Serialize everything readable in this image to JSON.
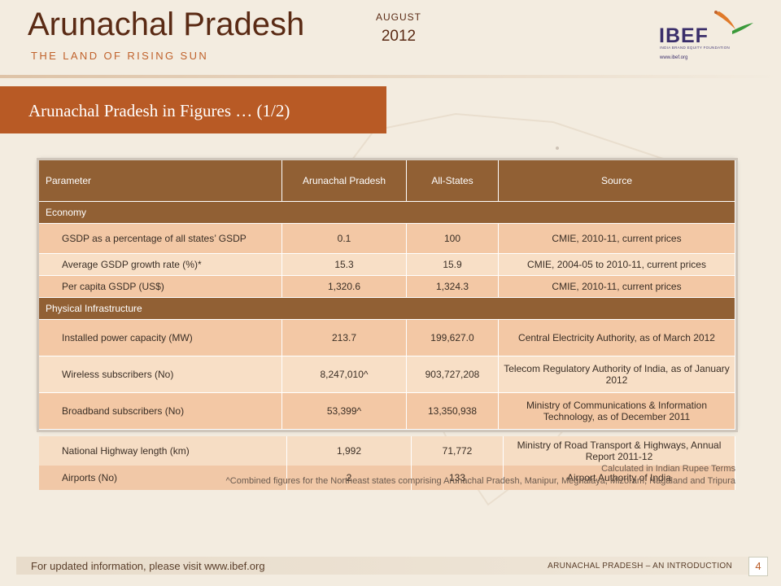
{
  "header": {
    "title": "Arunachal Pradesh",
    "tagline": "THE LAND OF RISING SUN",
    "month": "AUGUST",
    "year": "2012"
  },
  "logo": {
    "name": "IBEF",
    "subtitle": "INDIA BRAND EQUITY FOUNDATION",
    "url": "www.ibef.org"
  },
  "banner": {
    "title": "Arunachal Pradesh in Figures … (1/2)"
  },
  "table": {
    "headers": [
      "Parameter",
      "Arunachal Pradesh",
      "All-States",
      "Source"
    ],
    "section_economy": "Economy",
    "section_infra": "Physical Infrastructure",
    "economy_rows": [
      [
        "GSDP as a percentage of all states’ GSDP",
        "0.1",
        "100",
        "CMIE, 2010-11, current prices"
      ],
      [
        "Average GSDP growth rate (%)*",
        "15.3",
        "15.9",
        "CMIE, 2004-05 to 2010-11, current prices"
      ],
      [
        "Per capita GSDP (US$)",
        "1,320.6",
        "1,324.3",
        "CMIE, 2010-11, current prices"
      ]
    ],
    "infra_rows": [
      [
        "Installed power capacity (MW)",
        "213.7",
        "199,627.0",
        "Central Electricity Authority, as of March 2012"
      ],
      [
        "Wireless subscribers (No)",
        "8,247,010^",
        "903,727,208",
        "Telecom Regulatory Authority of India, as of January 2012"
      ],
      [
        "Broadband subscribers (No)",
        "53,399^",
        "13,350,938",
        "Ministry of Communications & Information Technology, as of December 2011"
      ]
    ],
    "hidden_rows": [
      [
        "National Highway length (km)",
        "1,992",
        "71,772",
        "Ministry of Road Transport & Highways, Annual Report 2011-12"
      ],
      [
        "Airports (No)",
        "2",
        "133",
        "Airport Authority of India"
      ]
    ]
  },
  "footnotes": {
    "star": "Calculated in Indian Rupee Terms",
    "caret": "^Combined figures for the Northeast states comprising Arunachal Pradesh, Manipur, Meghalaya, Mizoram, Nagaland and Tripura"
  },
  "footer": {
    "updated": "For updated information, please visit www.ibef.org",
    "section": "ARUNACHAL PRADESH – AN INTRODUCTION",
    "page": "4"
  },
  "colors": {
    "accent": "#b85a25",
    "table_header": "#916034",
    "row_dark": "#f3c8a5",
    "row_light": "#f8dfc6"
  }
}
